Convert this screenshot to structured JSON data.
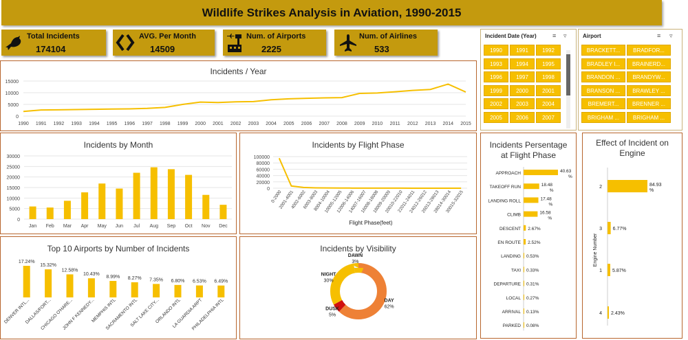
{
  "dashboard": {
    "title": "Wildlife Strikes Analysis in Aviation, 1990-2015"
  },
  "kpis": [
    {
      "label": "Total Incidents",
      "value": "174104",
      "icon": "bird-icon"
    },
    {
      "label": "AVG. Per Month",
      "value": "14509",
      "icon": "code-brackets-icon"
    },
    {
      "label": "Num. of Airports",
      "value": "2225",
      "icon": "airport-tower-icon"
    },
    {
      "label": "Num. of Airlines",
      "value": "533",
      "icon": "airplane-icon"
    }
  ],
  "slicers": {
    "year": {
      "title": "Incident Date (Year)",
      "items": [
        "1990",
        "1991",
        "1992",
        "1993",
        "1994",
        "1995",
        "1996",
        "1997",
        "1998",
        "1999",
        "2000",
        "2001",
        "2002",
        "2003",
        "2004",
        "2005",
        "2006",
        "2007"
      ]
    },
    "airport": {
      "title": "Airport",
      "items": [
        "BRACKETT...",
        "BRADFOR...",
        "BRADLEY I...",
        "BRAINERD...",
        "BRANDON ...",
        "BRANDYW...",
        "BRANSON ...",
        "BRAWLEY ...",
        "BREMERT...",
        "BRENNER ...",
        "BRIGHAM ...",
        "BRIGHAM ..."
      ]
    }
  },
  "chart_data": [
    {
      "id": "year",
      "type": "line",
      "title": "Incidents / Year",
      "categories": [
        "1990",
        "1991",
        "1992",
        "1993",
        "1994",
        "1995",
        "1996",
        "1997",
        "1998",
        "1999",
        "2000",
        "2001",
        "2002",
        "2003",
        "2004",
        "2005",
        "2006",
        "2007",
        "2008",
        "2009",
        "2010",
        "2011",
        "2012",
        "2013",
        "2014",
        "2015"
      ],
      "values": [
        2000,
        2600,
        2700,
        2800,
        2900,
        3000,
        3100,
        3300,
        3700,
        5000,
        6000,
        5800,
        6100,
        6200,
        7000,
        7400,
        7600,
        7800,
        7900,
        9700,
        9900,
        10400,
        11000,
        11400,
        13700,
        10300
      ],
      "yticks": [
        "0",
        "5000",
        "10000",
        "15000"
      ],
      "ylim": [
        0,
        15000
      ],
      "color": "#f6bf00"
    },
    {
      "id": "month",
      "type": "bar",
      "title": "Incidents by Month",
      "categories": [
        "Jan",
        "Feb",
        "Mar",
        "Apr",
        "May",
        "Jun",
        "Jul",
        "Aug",
        "Sep",
        "Oct",
        "Nov",
        "Dec"
      ],
      "values": [
        6000,
        5500,
        8700,
        12700,
        16900,
        14500,
        22000,
        24600,
        23700,
        21000,
        11500,
        6800
      ],
      "yticks": [
        "0",
        "5000",
        "10000",
        "15000",
        "20000",
        "25000",
        "30000"
      ],
      "ylim": [
        0,
        30000
      ],
      "color": "#f6bf00"
    },
    {
      "id": "phase",
      "type": "line",
      "title": "Incidents by Flight Phase",
      "xlabel": "Flight Phase(feet)",
      "categories": [
        "0-2000",
        "2001-4001",
        "4002-6002",
        "6003-8003",
        "8004-10004",
        "10005-12005",
        "12006-14006",
        "14007-16007",
        "16008-18008",
        "18009-20009",
        "20010-22010",
        "22011-24011",
        "24012-26012",
        "26013-28013",
        "28014-30014",
        "30015-32015"
      ],
      "values": [
        95000,
        7000,
        2500,
        1200,
        700,
        500,
        400,
        300,
        250,
        200,
        150,
        120,
        100,
        80,
        60,
        50
      ],
      "yticks": [
        "0",
        "20000",
        "40000",
        "60000",
        "80000",
        "100000"
      ],
      "ylim": [
        0,
        100000
      ],
      "color": "#f6bf00"
    },
    {
      "id": "airports",
      "type": "bar",
      "title": "Top 10 Airports by Number of Incidents",
      "categories": [
        "DENVER INTL...",
        "DALLAS/FORT...",
        "CHICAGO O'HARE...",
        "JOHN F KENNEDY...",
        "MEMPHIS INTL",
        "SACRAMENTO INTL",
        "SALT LAKE CITY...",
        "ORLANDO INTL",
        "LA GUARDIA ARPT",
        "PHILADELPHIA INTL"
      ],
      "values": [
        17.24,
        15.32,
        12.58,
        10.43,
        8.99,
        8.27,
        7.35,
        6.8,
        6.53,
        6.49
      ],
      "labels": [
        "17.24%",
        "15.32%",
        "12.58%",
        "10.43%",
        "8.99%",
        "8.27%",
        "7.35%",
        "6.80%",
        "6.53%",
        "6.49%"
      ],
      "color": "#f6bf00"
    },
    {
      "id": "visibility",
      "type": "pie",
      "title": "Incidents by Visibility",
      "slices": [
        {
          "name": "DAY",
          "value": 62,
          "label": "62%",
          "color": "#ee8136"
        },
        {
          "name": "DUSK",
          "value": 5,
          "label": "5%",
          "color": "#d01010"
        },
        {
          "name": "NIGHT",
          "value": 30,
          "label": "30%",
          "color": "#f6bf00"
        },
        {
          "name": "DAWN",
          "value": 3,
          "label": "3%",
          "color": "#f6bf00"
        }
      ]
    },
    {
      "id": "flightphase",
      "type": "bar",
      "orientation": "horizontal",
      "title": "Incidents Persentage at Flight Phase",
      "categories": [
        "APPROACH",
        "TAKEOFF RUN",
        "LANDING ROLL",
        "CLIMB",
        "DESCENT",
        "EN ROUTE",
        "LANDING",
        "TAXI",
        "DEPARTURE",
        "LOCAL",
        "ARRIVAL",
        "PARKED"
      ],
      "values": [
        40.63,
        18.48,
        17.48,
        16.58,
        2.67,
        2.52,
        0.53,
        0.33,
        0.31,
        0.27,
        0.13,
        0.08
      ],
      "labels": [
        "40.63 %",
        "18.48 %",
        "17.48 %",
        "16.58 %",
        "2.67%",
        "2.52%",
        "0.53%",
        "0.33%",
        "0.31%",
        "0.27%",
        "0.13%",
        "0.08%"
      ],
      "color": "#f6bf00"
    },
    {
      "id": "engine",
      "type": "bar",
      "orientation": "horizontal",
      "title": "Effect of Incident on Engine",
      "ylabel": "Engine Number",
      "categories": [
        "2",
        "3",
        "1",
        "4"
      ],
      "values": [
        84.93,
        6.77,
        5.87,
        2.43
      ],
      "labels": [
        "84.93 %",
        "6.77%",
        "5.87%",
        "2.43%"
      ],
      "color": "#f6bf00"
    }
  ]
}
